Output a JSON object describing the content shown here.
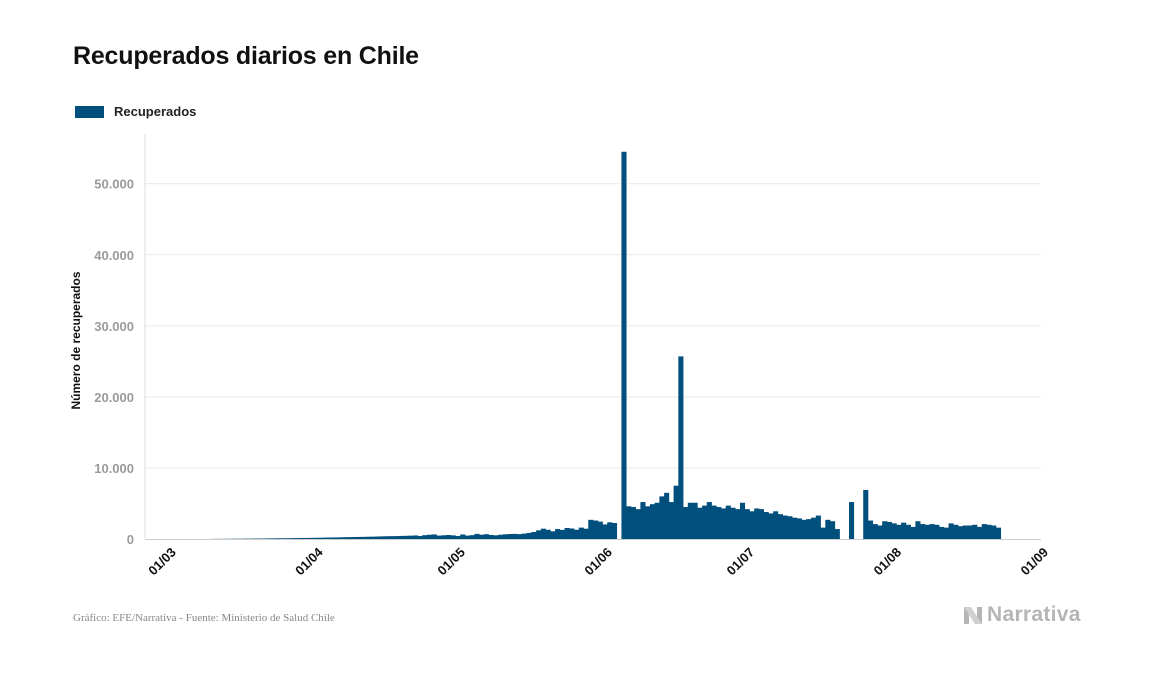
{
  "title": "Recuperados diarios en Chile",
  "legend": {
    "label": "Recuperados",
    "color": "#004f7c"
  },
  "source": "Gráfico: EFE/Narrativa - Fuente: Ministerio de Salud Chile",
  "brand": "Narrativa",
  "brand_icon": "narrativa-logo-icon",
  "colors": {
    "bar": "#004f7c",
    "grid": "#e9e9e9",
    "tick_text": "#9a9a9a",
    "axis_title": "#111111",
    "brand": "#b5b5b5"
  },
  "chart_data": {
    "type": "bar",
    "title": "Recuperados diarios en Chile",
    "ylabel": "Número de recuperados",
    "xlabel": "",
    "ylim": [
      0,
      57000
    ],
    "yticks": [
      0,
      10000,
      20000,
      30000,
      40000,
      50000
    ],
    "ytick_labels": [
      "0",
      "10.000",
      "20.000",
      "30.000",
      "40.000",
      "50.000"
    ],
    "xlim": [
      "2020-02-25",
      "2020-09-01"
    ],
    "xticks": [
      "2020-03-01",
      "2020-04-01",
      "2020-05-01",
      "2020-06-01",
      "2020-07-01",
      "2020-08-01",
      "2020-09-01"
    ],
    "xtick_labels": [
      "01/03",
      "01/04",
      "01/05",
      "01/06",
      "01/07",
      "01/08",
      "01/09"
    ],
    "grid": true,
    "legend_position": "top-left",
    "series": [
      {
        "name": "Recuperados",
        "x": [
          "2020-03-10",
          "2020-03-11",
          "2020-03-12",
          "2020-03-13",
          "2020-03-14",
          "2020-03-15",
          "2020-03-16",
          "2020-03-17",
          "2020-03-18",
          "2020-03-19",
          "2020-03-20",
          "2020-03-21",
          "2020-03-22",
          "2020-03-23",
          "2020-03-24",
          "2020-03-25",
          "2020-03-26",
          "2020-03-27",
          "2020-03-28",
          "2020-03-29",
          "2020-03-30",
          "2020-03-31",
          "2020-04-01",
          "2020-04-02",
          "2020-04-03",
          "2020-04-04",
          "2020-04-05",
          "2020-04-06",
          "2020-04-07",
          "2020-04-08",
          "2020-04-09",
          "2020-04-10",
          "2020-04-11",
          "2020-04-12",
          "2020-04-13",
          "2020-04-14",
          "2020-04-15",
          "2020-04-16",
          "2020-04-17",
          "2020-04-18",
          "2020-04-19",
          "2020-04-20",
          "2020-04-21",
          "2020-04-22",
          "2020-04-23",
          "2020-04-24",
          "2020-04-25",
          "2020-04-26",
          "2020-04-27",
          "2020-04-28",
          "2020-04-29",
          "2020-04-30",
          "2020-05-01",
          "2020-05-02",
          "2020-05-03",
          "2020-05-04",
          "2020-05-05",
          "2020-05-06",
          "2020-05-07",
          "2020-05-08",
          "2020-05-09",
          "2020-05-10",
          "2020-05-11",
          "2020-05-12",
          "2020-05-13",
          "2020-05-14",
          "2020-05-15",
          "2020-05-16",
          "2020-05-17",
          "2020-05-18",
          "2020-05-19",
          "2020-05-20",
          "2020-05-21",
          "2020-05-22",
          "2020-05-23",
          "2020-05-24",
          "2020-05-25",
          "2020-05-26",
          "2020-05-27",
          "2020-05-28",
          "2020-05-29",
          "2020-05-30",
          "2020-05-31",
          "2020-06-01",
          "2020-06-02",
          "2020-06-03",
          "2020-06-05",
          "2020-06-06",
          "2020-06-07",
          "2020-06-08",
          "2020-06-09",
          "2020-06-10",
          "2020-06-11",
          "2020-06-12",
          "2020-06-13",
          "2020-06-14",
          "2020-06-15",
          "2020-06-16",
          "2020-06-17",
          "2020-06-18",
          "2020-06-19",
          "2020-06-20",
          "2020-06-21",
          "2020-06-22",
          "2020-06-23",
          "2020-06-24",
          "2020-06-25",
          "2020-06-26",
          "2020-06-27",
          "2020-06-28",
          "2020-06-29",
          "2020-06-30",
          "2020-07-01",
          "2020-07-02",
          "2020-07-03",
          "2020-07-04",
          "2020-07-05",
          "2020-07-06",
          "2020-07-07",
          "2020-07-08",
          "2020-07-09",
          "2020-07-10",
          "2020-07-11",
          "2020-07-12",
          "2020-07-13",
          "2020-07-14",
          "2020-07-15",
          "2020-07-16",
          "2020-07-17",
          "2020-07-18",
          "2020-07-19",
          "2020-07-20",
          "2020-07-23",
          "2020-07-26",
          "2020-07-27",
          "2020-07-28",
          "2020-07-29",
          "2020-07-30",
          "2020-07-31",
          "2020-08-01",
          "2020-08-02",
          "2020-08-03",
          "2020-08-04",
          "2020-08-05",
          "2020-08-06",
          "2020-08-07",
          "2020-08-08",
          "2020-08-09",
          "2020-08-10",
          "2020-08-11",
          "2020-08-12",
          "2020-08-13",
          "2020-08-14",
          "2020-08-15",
          "2020-08-16",
          "2020-08-17",
          "2020-08-18",
          "2020-08-19",
          "2020-08-20",
          "2020-08-21",
          "2020-08-22",
          "2020-08-23"
        ],
        "values": [
          10,
          20,
          20,
          30,
          30,
          40,
          40,
          50,
          50,
          60,
          60,
          70,
          80,
          90,
          100,
          100,
          110,
          120,
          130,
          140,
          150,
          160,
          170,
          180,
          200,
          210,
          220,
          230,
          250,
          260,
          280,
          290,
          300,
          320,
          330,
          350,
          370,
          390,
          400,
          410,
          430,
          450,
          470,
          500,
          420,
          540,
          600,
          640,
          480,
          520,
          560,
          510,
          420,
          640,
          480,
          540,
          720,
          600,
          680,
          560,
          520,
          600,
          660,
          700,
          720,
          680,
          760,
          860,
          980,
          1220,
          1450,
          1300,
          1080,
          1400,
          1280,
          1550,
          1480,
          1300,
          1600,
          1450,
          2700,
          2600,
          2450,
          2050,
          2350,
          2250,
          54500,
          4600,
          4500,
          4200,
          5200,
          4600,
          4900,
          5100,
          6000,
          6500,
          5200,
          7500,
          25700,
          4500,
          5100,
          5100,
          4400,
          4700,
          5200,
          4700,
          4500,
          4300,
          4700,
          4400,
          4200,
          5100,
          4200,
          3900,
          4300,
          4200,
          3800,
          3600,
          3900,
          3500,
          3300,
          3200,
          3000,
          2900,
          2700,
          2800,
          3000,
          3300,
          1600,
          2700,
          2500,
          1400,
          5200,
          6900,
          2600,
          2100,
          1900,
          2500,
          2400,
          2200,
          2000,
          2300,
          2000,
          1700,
          2500,
          2100,
          2000,
          2100,
          2000,
          1700,
          1600,
          2200,
          2000,
          1800,
          1900,
          1900,
          2000,
          1700,
          2100,
          2000,
          1900,
          1600
        ]
      }
    ]
  }
}
